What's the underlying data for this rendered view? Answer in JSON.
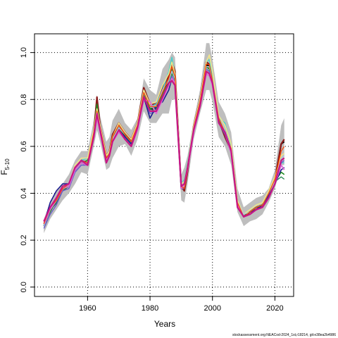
{
  "chart_data": {
    "type": "line",
    "xlabel": "Years",
    "ylabel": "F",
    "ylabel_subscript": "5-10",
    "footer": "stockassessment.org:NEACod-2024_1st,r18214, git:e38ea2b4986",
    "xlim": [
      1943,
      2026
    ],
    "ylim": [
      -0.04,
      1.08
    ],
    "grid": true,
    "x_ticks": [
      1960,
      1980,
      2000,
      2020
    ],
    "x_tick_labels": [
      "1960",
      "1980",
      "2000",
      "2020"
    ],
    "y_ticks": [
      0.0,
      0.2,
      0.4,
      0.6,
      0.8,
      1.0
    ],
    "y_tick_labels": [
      "0.0",
      "0.2",
      "0.4",
      "0.6",
      "0.8",
      "1.0"
    ],
    "band_color": "#bebebe",
    "x": [
      1946,
      1948,
      1950,
      1952,
      1954,
      1956,
      1958,
      1960,
      1962,
      1963,
      1964,
      1966,
      1967,
      1968,
      1970,
      1972,
      1974,
      1976,
      1978,
      1980,
      1982,
      1984,
      1986,
      1987,
      1988,
      1990,
      1991,
      1992,
      1994,
      1996,
      1998,
      1999,
      2000,
      2002,
      2004,
      2006,
      2008,
      2010,
      2012,
      2014,
      2016,
      2018,
      2020,
      2022,
      2023
    ],
    "band_lower": [
      0.23,
      0.29,
      0.33,
      0.37,
      0.4,
      0.44,
      0.49,
      0.48,
      0.6,
      0.67,
      0.62,
      0.5,
      0.51,
      0.55,
      0.6,
      0.61,
      0.56,
      0.63,
      0.75,
      0.7,
      0.7,
      0.74,
      0.74,
      0.8,
      0.8,
      0.37,
      0.36,
      0.44,
      0.63,
      0.74,
      0.84,
      0.84,
      0.79,
      0.64,
      0.6,
      0.52,
      0.32,
      0.26,
      0.28,
      0.29,
      0.31,
      0.36,
      0.42,
      0.52,
      0.52
    ],
    "band_upper": [
      0.29,
      0.36,
      0.41,
      0.44,
      0.48,
      0.54,
      0.58,
      0.58,
      0.71,
      0.82,
      0.73,
      0.62,
      0.64,
      0.71,
      0.76,
      0.7,
      0.67,
      0.72,
      0.89,
      0.84,
      0.82,
      0.93,
      0.97,
      1.0,
      0.98,
      0.48,
      0.51,
      0.56,
      0.71,
      0.84,
      1.04,
      1.04,
      0.97,
      0.79,
      0.74,
      0.66,
      0.42,
      0.34,
      0.36,
      0.38,
      0.39,
      0.42,
      0.5,
      0.69,
      0.72
    ],
    "series": [
      {
        "color": "#000000",
        "width": 2.0,
        "values": [
          0.26,
          0.33,
          0.36,
          0.42,
          0.43,
          0.5,
          0.53,
          0.52,
          0.65,
          0.74,
          0.67,
          0.55,
          0.57,
          0.63,
          0.68,
          0.65,
          0.62,
          0.68,
          0.83,
          0.76,
          0.76,
          0.82,
          0.88,
          0.92,
          0.89,
          0.42,
          0.42,
          0.5,
          0.68,
          0.78,
          0.95,
          0.94,
          0.88,
          0.72,
          0.66,
          0.58,
          0.36,
          0.3,
          0.32,
          0.34,
          0.35,
          0.39,
          0.45,
          0.61,
          0.62
        ]
      },
      {
        "color": "#8b1a1a",
        "width": 2.2,
        "values": [
          0.28,
          0.33,
          0.37,
          0.43,
          0.44,
          0.5,
          0.54,
          0.52,
          0.66,
          0.81,
          0.69,
          0.56,
          0.58,
          0.65,
          0.7,
          0.66,
          0.63,
          0.7,
          0.85,
          0.78,
          0.78,
          0.85,
          0.9,
          0.96,
          0.92,
          0.43,
          0.41,
          0.49,
          0.69,
          0.8,
          0.96,
          0.95,
          0.89,
          0.71,
          0.64,
          0.58,
          0.35,
          0.3,
          0.32,
          0.33,
          0.35,
          0.39,
          0.46,
          0.61,
          0.63
        ]
      },
      {
        "color": "#228b22",
        "width": 1.6,
        "values": [
          0.27,
          0.32,
          0.37,
          0.41,
          0.43,
          0.51,
          0.53,
          0.54,
          0.66,
          0.78,
          0.68,
          0.54,
          0.56,
          0.63,
          0.68,
          0.64,
          0.61,
          0.68,
          0.82,
          0.76,
          0.77,
          0.83,
          0.87,
          0.91,
          0.89,
          0.44,
          0.45,
          0.52,
          0.68,
          0.79,
          0.94,
          0.93,
          0.87,
          0.71,
          0.67,
          0.59,
          0.36,
          0.31,
          0.32,
          0.34,
          0.35,
          0.4,
          0.45,
          0.49,
          0.48
        ]
      },
      {
        "color": "#2e8b57",
        "width": 1.4,
        "values": [
          0.26,
          0.33,
          0.36,
          0.42,
          0.43,
          0.5,
          0.53,
          0.53,
          0.65,
          0.73,
          0.67,
          0.55,
          0.56,
          0.62,
          0.67,
          0.64,
          0.61,
          0.67,
          0.82,
          0.75,
          0.76,
          0.82,
          0.87,
          0.93,
          0.88,
          0.43,
          0.44,
          0.51,
          0.67,
          0.78,
          0.93,
          0.92,
          0.87,
          0.71,
          0.66,
          0.58,
          0.35,
          0.3,
          0.32,
          0.34,
          0.35,
          0.4,
          0.45,
          0.47,
          0.46
        ]
      },
      {
        "color": "#48d1cc",
        "width": 1.4,
        "values": [
          0.27,
          0.33,
          0.37,
          0.42,
          0.44,
          0.51,
          0.54,
          0.55,
          0.66,
          0.74,
          0.68,
          0.56,
          0.57,
          0.63,
          0.68,
          0.65,
          0.62,
          0.69,
          0.84,
          0.77,
          0.78,
          0.84,
          0.92,
          0.98,
          0.9,
          0.44,
          0.46,
          0.53,
          0.69,
          0.8,
          0.96,
          0.97,
          0.89,
          0.72,
          0.7,
          0.6,
          0.37,
          0.31,
          0.33,
          0.35,
          0.36,
          0.4,
          0.46,
          0.53,
          0.53
        ]
      },
      {
        "color": "#6a5acd",
        "width": 1.4,
        "values": [
          0.25,
          0.31,
          0.35,
          0.41,
          0.42,
          0.49,
          0.52,
          0.52,
          0.64,
          0.72,
          0.66,
          0.54,
          0.56,
          0.62,
          0.67,
          0.63,
          0.6,
          0.67,
          0.81,
          0.74,
          0.75,
          0.81,
          0.86,
          0.9,
          0.87,
          0.42,
          0.42,
          0.5,
          0.67,
          0.77,
          0.93,
          0.92,
          0.86,
          0.7,
          0.65,
          0.57,
          0.35,
          0.3,
          0.31,
          0.33,
          0.34,
          0.38,
          0.44,
          0.53,
          0.54
        ]
      },
      {
        "color": "#1e1e8f",
        "width": 1.6,
        "values": [
          0.27,
          0.36,
          0.41,
          0.44,
          0.44,
          0.51,
          0.54,
          0.53,
          0.65,
          0.73,
          0.67,
          0.55,
          0.56,
          0.62,
          0.67,
          0.64,
          0.61,
          0.68,
          0.81,
          0.72,
          0.77,
          0.79,
          0.84,
          0.89,
          0.86,
          0.42,
          0.43,
          0.5,
          0.67,
          0.77,
          0.92,
          0.91,
          0.86,
          0.7,
          0.66,
          0.58,
          0.36,
          0.3,
          0.32,
          0.33,
          0.35,
          0.39,
          0.44,
          0.5,
          0.51
        ]
      },
      {
        "color": "#f0e68c",
        "width": 1.6,
        "values": [
          0.27,
          0.34,
          0.38,
          0.43,
          0.44,
          0.52,
          0.55,
          0.55,
          0.67,
          0.76,
          0.69,
          0.56,
          0.58,
          0.64,
          0.7,
          0.66,
          0.63,
          0.7,
          0.84,
          0.78,
          0.79,
          0.86,
          0.91,
          0.96,
          0.91,
          0.44,
          0.45,
          0.52,
          0.69,
          0.8,
          0.96,
          0.99,
          0.92,
          0.73,
          0.69,
          0.61,
          0.37,
          0.31,
          0.33,
          0.35,
          0.36,
          0.41,
          0.47,
          0.56,
          0.57
        ]
      },
      {
        "color": "#b0c4de",
        "width": 1.4,
        "values": [
          0.26,
          0.33,
          0.37,
          0.42,
          0.43,
          0.5,
          0.53,
          0.53,
          0.65,
          0.74,
          0.67,
          0.55,
          0.57,
          0.63,
          0.68,
          0.65,
          0.62,
          0.68,
          0.83,
          0.77,
          0.77,
          0.84,
          0.88,
          0.92,
          0.89,
          0.43,
          0.43,
          0.51,
          0.68,
          0.79,
          0.94,
          0.94,
          0.88,
          0.72,
          0.67,
          0.59,
          0.36,
          0.31,
          0.32,
          0.34,
          0.35,
          0.4,
          0.45,
          0.55,
          0.56
        ]
      },
      {
        "color": "#da70d6",
        "width": 2.0,
        "values": [
          0.27,
          0.33,
          0.37,
          0.42,
          0.43,
          0.5,
          0.53,
          0.52,
          0.64,
          0.72,
          0.66,
          0.54,
          0.56,
          0.62,
          0.66,
          0.63,
          0.6,
          0.67,
          0.8,
          0.79,
          0.74,
          0.8,
          0.86,
          0.89,
          0.87,
          0.42,
          0.43,
          0.5,
          0.66,
          0.77,
          0.91,
          0.9,
          0.86,
          0.7,
          0.66,
          0.57,
          0.35,
          0.3,
          0.31,
          0.33,
          0.34,
          0.38,
          0.44,
          0.52,
          0.5
        ]
      },
      {
        "color": "#ff4500",
        "width": 1.2,
        "values": [
          0.27,
          0.34,
          0.37,
          0.42,
          0.44,
          0.51,
          0.54,
          0.53,
          0.66,
          0.75,
          0.68,
          0.55,
          0.57,
          0.64,
          0.69,
          0.65,
          0.62,
          0.69,
          0.83,
          0.77,
          0.77,
          0.83,
          0.89,
          0.94,
          0.9,
          0.43,
          0.42,
          0.5,
          0.68,
          0.79,
          0.95,
          0.95,
          0.88,
          0.72,
          0.66,
          0.59,
          0.36,
          0.3,
          0.32,
          0.34,
          0.35,
          0.4,
          0.46,
          0.58,
          0.6
        ]
      },
      {
        "color": "#c71585",
        "width": 2.2,
        "values": [
          0.28,
          0.34,
          0.38,
          0.43,
          0.44,
          0.51,
          0.54,
          0.52,
          0.64,
          0.74,
          0.67,
          0.53,
          0.56,
          0.62,
          0.67,
          0.63,
          0.6,
          0.68,
          0.81,
          0.75,
          0.75,
          0.81,
          0.87,
          0.88,
          0.86,
          0.43,
          0.44,
          0.51,
          0.67,
          0.77,
          0.92,
          0.91,
          0.87,
          0.7,
          0.66,
          0.58,
          0.34,
          0.3,
          0.31,
          0.33,
          0.34,
          0.38,
          0.44,
          0.54,
          0.55
        ]
      }
    ]
  }
}
